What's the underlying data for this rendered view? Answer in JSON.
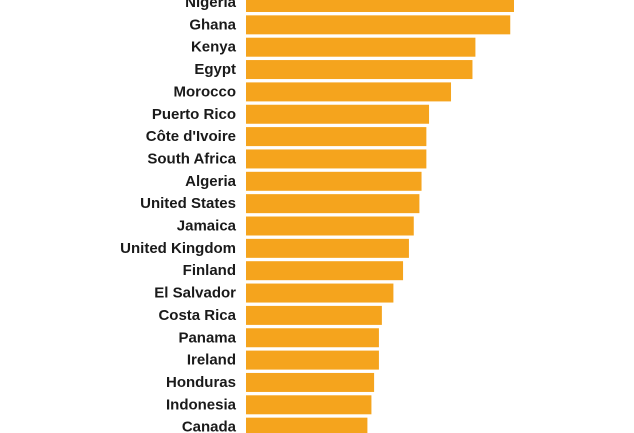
{
  "chart_data": {
    "type": "bar",
    "orientation": "horizontal",
    "title": "",
    "xlabel": "",
    "ylabel": "",
    "bar_color": "#F5A41D",
    "grid": false,
    "legend": "none",
    "xlim": [
      0,
      100
    ],
    "categories": [
      "Nigeria",
      "Ghana",
      "Kenya",
      "Egypt",
      "Morocco",
      "Puerto Rico",
      "Côte d'Ivoire",
      "South Africa",
      "Algeria",
      "United States",
      "Jamaica",
      "United Kingdom",
      "Finland",
      "El Salvador",
      "Costa Rica",
      "Panama",
      "Ireland",
      "Honduras",
      "Indonesia",
      "Canada"
    ],
    "values": [
      100,
      98.6,
      85.6,
      84.5,
      76.5,
      68.3,
      67.3,
      67.3,
      65.5,
      64.7,
      62.6,
      60.8,
      58.6,
      55.0,
      50.7,
      49.6,
      49.6,
      47.8,
      46.8,
      45.3
    ]
  }
}
